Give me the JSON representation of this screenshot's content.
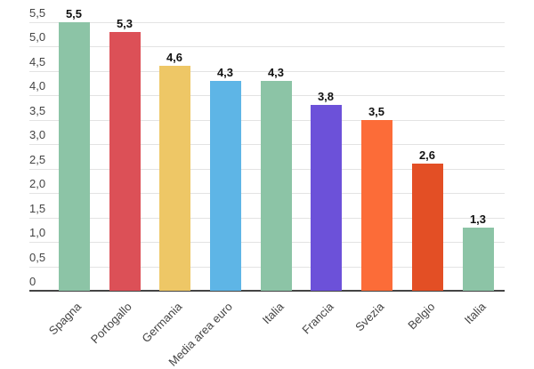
{
  "chart_data": {
    "type": "bar",
    "title": "",
    "xlabel": "",
    "ylabel": "",
    "ylim": [
      0,
      5.5
    ],
    "yticks": [
      "0",
      "0,5",
      "1,0",
      "1,5",
      "2,0",
      "2,5",
      "3,0",
      "3,5",
      "4,0",
      "4,5",
      "5,0",
      "5,5"
    ],
    "grid": true,
    "legend": null,
    "categories": [
      "Spagna",
      "Portogallo",
      "Germania",
      "Media area euro",
      "Italia",
      "Francia",
      "Svezia",
      "Belgio",
      "Italia"
    ],
    "values": [
      5.5,
      5.3,
      4.6,
      4.3,
      4.3,
      3.8,
      3.5,
      2.6,
      1.3
    ],
    "value_labels": [
      "5,5",
      "5,3",
      "4,6",
      "4,3",
      "4,3",
      "3,8",
      "3,5",
      "2,6",
      "1,3"
    ],
    "colors": [
      "#8cc4a6",
      "#dc5057",
      "#eec766",
      "#5eb5e6",
      "#8cc4a6",
      "#6c51d9",
      "#fc6c38",
      "#e34f25",
      "#8cc4a6"
    ]
  }
}
